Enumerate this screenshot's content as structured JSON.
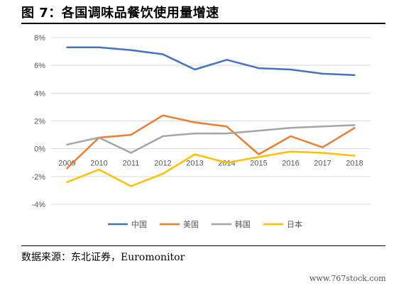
{
  "figure": {
    "title": "图 7：各国调味品餐饮使用量增速",
    "source": "数据来源：东北证券，Euromonitor",
    "watermark": "www.767stock.com"
  },
  "chart_data": {
    "type": "line",
    "title": "",
    "xlabel": "",
    "ylabel": "",
    "x": [
      "2009",
      "2010",
      "2011",
      "2012",
      "2013",
      "2014",
      "2015",
      "2016",
      "2017",
      "2018"
    ],
    "yticks": [
      "8%",
      "6%",
      "4%",
      "2%",
      "0%",
      "-2%",
      "-4%"
    ],
    "ylim": [
      -4,
      8
    ],
    "y_unit": "%",
    "grid": true,
    "legend_position": "bottom",
    "series": [
      {
        "name": "中国",
        "color": "#4472C4",
        "values": [
          7.3,
          7.3,
          7.1,
          6.8,
          5.7,
          6.4,
          5.8,
          5.7,
          5.4,
          5.3
        ]
      },
      {
        "name": "美国",
        "color": "#ED7D31",
        "values": [
          -1.4,
          0.8,
          1.0,
          2.4,
          1.9,
          1.6,
          -0.4,
          0.9,
          0.1,
          1.5
        ]
      },
      {
        "name": "韩国",
        "color": "#A5A5A5",
        "values": [
          0.3,
          0.8,
          -0.3,
          0.9,
          1.1,
          1.1,
          1.3,
          1.5,
          1.6,
          1.7
        ]
      },
      {
        "name": "日本",
        "color": "#FFC000",
        "values": [
          -2.4,
          -1.5,
          -2.7,
          -1.8,
          -0.4,
          -1.0,
          -0.6,
          -0.2,
          -0.3,
          -0.5
        ]
      }
    ]
  }
}
